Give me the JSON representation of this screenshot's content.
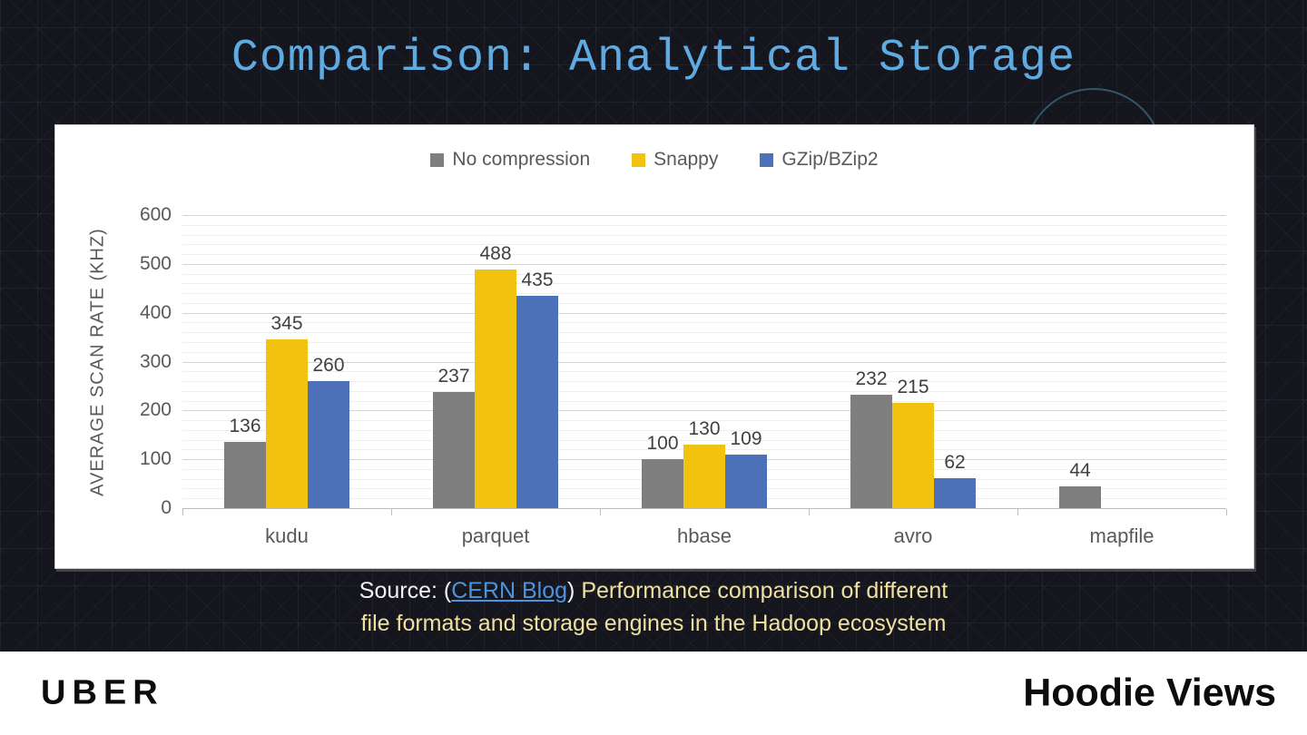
{
  "slide": {
    "title": "Comparison: Analytical Storage"
  },
  "chart_data": {
    "type": "bar",
    "categories": [
      "kudu",
      "parquet",
      "hbase",
      "avro",
      "mapfile"
    ],
    "series": [
      {
        "name": "No compression",
        "color": "#7f7f7f",
        "values": [
          136,
          237,
          100,
          232,
          44
        ]
      },
      {
        "name": "Snappy",
        "color": "#f2c211",
        "values": [
          345,
          488,
          130,
          215,
          null
        ]
      },
      {
        "name": "GZip/BZip2",
        "color": "#4d71b9",
        "values": [
          260,
          435,
          109,
          62,
          null
        ]
      }
    ],
    "title": "",
    "xlabel": "",
    "ylabel": "AVERAGE SCAN RATE (KHZ)",
    "ylim": [
      0,
      600
    ],
    "ytick_step": 100,
    "minor_grid_step": 20,
    "grid": true,
    "data_labels": true,
    "legend_position": "top"
  },
  "source": {
    "prefix": "Source: (",
    "link_text": "CERN Blog",
    "after_link": ") ",
    "line1_rest": "Performance comparison of different",
    "line2": "file formats and storage engines in the Hadoop ecosystem"
  },
  "footer": {
    "brand": "UBER",
    "deck_title": "Hoodie Views"
  },
  "colors": {
    "background": "#15151d",
    "title": "#5fabe1",
    "panel": "#ffffff",
    "source_text": "#efe0a0",
    "link": "#4e93dd",
    "axis_text": "#595959"
  }
}
